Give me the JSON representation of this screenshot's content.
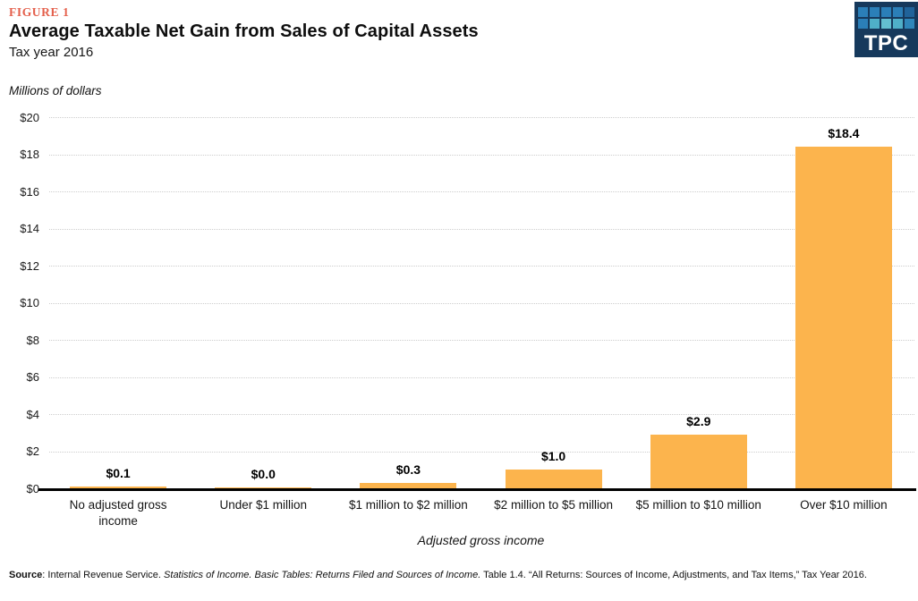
{
  "header": {
    "figure_label": "FIGURE 1",
    "title": "Average Taxable Net Gain from Sales of Capital Assets",
    "subtitle": "Tax year 2016"
  },
  "logo": {
    "text": "TPC",
    "bg_color": "#16395c",
    "square_rows": [
      [
        "#2b7fb8",
        "#2b7fb8",
        "#2b7fb8",
        "#2b7fb8",
        "#20639a"
      ],
      [
        "#2b7fb8",
        "#4fafc8",
        "#63bed0",
        "#4fafc8",
        "#2f86ba"
      ]
    ]
  },
  "chart_data": {
    "type": "bar",
    "title": "Average Taxable Net Gain from Sales of Capital Assets",
    "subtitle": "Tax year 2016",
    "ylabel": "Millions of dollars",
    "xlabel": "Adjusted gross income",
    "categories": [
      "No adjusted gross\nincome",
      "Under $1 million",
      "$1 million to $2 million",
      "$2 million to $5 million",
      "$5 million to $10 million",
      "Over $10 million"
    ],
    "values": [
      0.1,
      0.0,
      0.3,
      1.0,
      2.9,
      18.4
    ],
    "value_labels": [
      "$0.1",
      "$0.0",
      "$0.3",
      "$1.0",
      "$2.9",
      "$18.4"
    ],
    "ylim": [
      0,
      20
    ],
    "ytick_values": [
      0,
      2,
      4,
      6,
      8,
      10,
      12,
      14,
      16,
      18,
      20
    ],
    "ytick_labels": [
      "$0",
      "$2",
      "$4",
      "$6",
      "$8",
      "$10",
      "$12",
      "$14",
      "$16",
      "$18",
      "$20"
    ],
    "grid": true,
    "legend": "none",
    "bar_color": "#fcb44d"
  },
  "footer": {
    "source_label": "Source",
    "text_a": ": Internal Revenue Service. ",
    "text_italic": "Statistics of Income. Basic Tables: Returns Filed and Sources of Income.",
    "text_b": " Table 1.4. “All Returns: Sources of Income, Adjustments, and Tax Items,” Tax Year 2016."
  },
  "colors": {
    "bar": "#fcb44d",
    "figure_label": "#e4604c",
    "gridline": "#cdcdcd",
    "axis": "#000000",
    "logo_bg": "#16395c"
  }
}
